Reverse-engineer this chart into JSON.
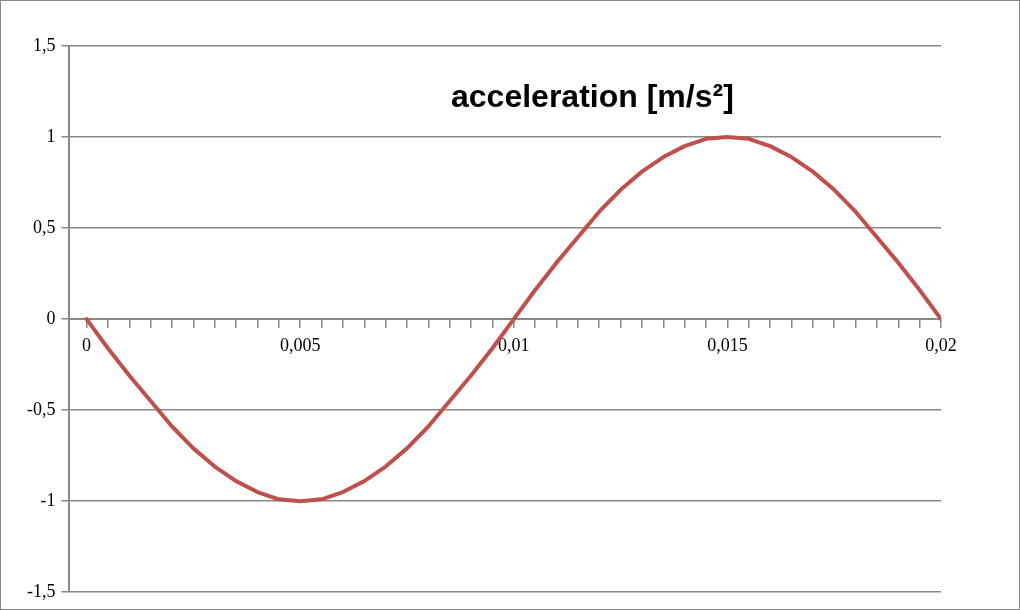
{
  "chart_data": {
    "type": "line",
    "title": "acceleration [m/s²]",
    "x": [
      0,
      0.0005,
      0.001,
      0.0015,
      0.002,
      0.0025,
      0.003,
      0.0035,
      0.004,
      0.0045,
      0.005,
      0.0055,
      0.006,
      0.0065,
      0.007,
      0.0075,
      0.008,
      0.0085,
      0.009,
      0.0095,
      0.01,
      0.0105,
      0.011,
      0.0115,
      0.012,
      0.0125,
      0.013,
      0.0135,
      0.014,
      0.0145,
      0.015,
      0.0155,
      0.016,
      0.0165,
      0.017,
      0.0175,
      0.018,
      0.0185,
      0.019,
      0.0195,
      0.02
    ],
    "series": [
      {
        "color": "#c0504d",
        "values": [
          0,
          -0.16,
          -0.31,
          -0.45,
          -0.59,
          -0.71,
          -0.81,
          -0.89,
          -0.95,
          -0.99,
          -1,
          -0.99,
          -0.95,
          -0.89,
          -0.81,
          -0.71,
          -0.59,
          -0.45,
          -0.31,
          -0.16,
          0,
          0.16,
          0.31,
          0.45,
          0.59,
          0.71,
          0.81,
          0.89,
          0.95,
          0.99,
          1,
          0.99,
          0.95,
          0.89,
          0.81,
          0.71,
          0.59,
          0.45,
          0.31,
          0.16,
          0
        ]
      }
    ],
    "xlim": [
      -0.0004,
      0.02
    ],
    "xticks": [
      {
        "value": 0,
        "label": "0"
      },
      {
        "value": 0.0005,
        "label": null
      },
      {
        "value": 0.001,
        "label": null
      },
      {
        "value": 0.0015,
        "label": null
      },
      {
        "value": 0.002,
        "label": null
      },
      {
        "value": 0.0025,
        "label": null
      },
      {
        "value": 0.003,
        "label": null
      },
      {
        "value": 0.0035,
        "label": null
      },
      {
        "value": 0.004,
        "label": null
      },
      {
        "value": 0.0045,
        "label": null
      },
      {
        "value": 0.005,
        "label": "0,005"
      },
      {
        "value": 0.0055,
        "label": null
      },
      {
        "value": 0.006,
        "label": null
      },
      {
        "value": 0.0065,
        "label": null
      },
      {
        "value": 0.007,
        "label": null
      },
      {
        "value": 0.0075,
        "label": null
      },
      {
        "value": 0.008,
        "label": null
      },
      {
        "value": 0.0085,
        "label": null
      },
      {
        "value": 0.009,
        "label": null
      },
      {
        "value": 0.0095,
        "label": null
      },
      {
        "value": 0.01,
        "label": "0,01"
      },
      {
        "value": 0.0105,
        "label": null
      },
      {
        "value": 0.011,
        "label": null
      },
      {
        "value": 0.0115,
        "label": null
      },
      {
        "value": 0.012,
        "label": null
      },
      {
        "value": 0.0125,
        "label": null
      },
      {
        "value": 0.013,
        "label": null
      },
      {
        "value": 0.0135,
        "label": null
      },
      {
        "value": 0.014,
        "label": null
      },
      {
        "value": 0.0145,
        "label": null
      },
      {
        "value": 0.015,
        "label": "0,015"
      },
      {
        "value": 0.0155,
        "label": null
      },
      {
        "value": 0.016,
        "label": null
      },
      {
        "value": 0.0165,
        "label": null
      },
      {
        "value": 0.017,
        "label": null
      },
      {
        "value": 0.0175,
        "label": null
      },
      {
        "value": 0.018,
        "label": null
      },
      {
        "value": 0.0185,
        "label": null
      },
      {
        "value": 0.019,
        "label": null
      },
      {
        "value": 0.0195,
        "label": null
      },
      {
        "value": 0.02,
        "label": "0,02"
      }
    ],
    "ylim": [
      -1.5,
      1.5
    ],
    "yticks": [
      {
        "value": -1.5,
        "label": "-1,5"
      },
      {
        "value": -1,
        "label": "-1"
      },
      {
        "value": -0.5,
        "label": "-0,5"
      },
      0,
      {
        "value": 0.5,
        "label": "0,5"
      },
      1,
      {
        "value": 1.5,
        "label": "1,5"
      }
    ],
    "grid": "y",
    "legend": false,
    "marker": "none",
    "line_style": "solid"
  }
}
